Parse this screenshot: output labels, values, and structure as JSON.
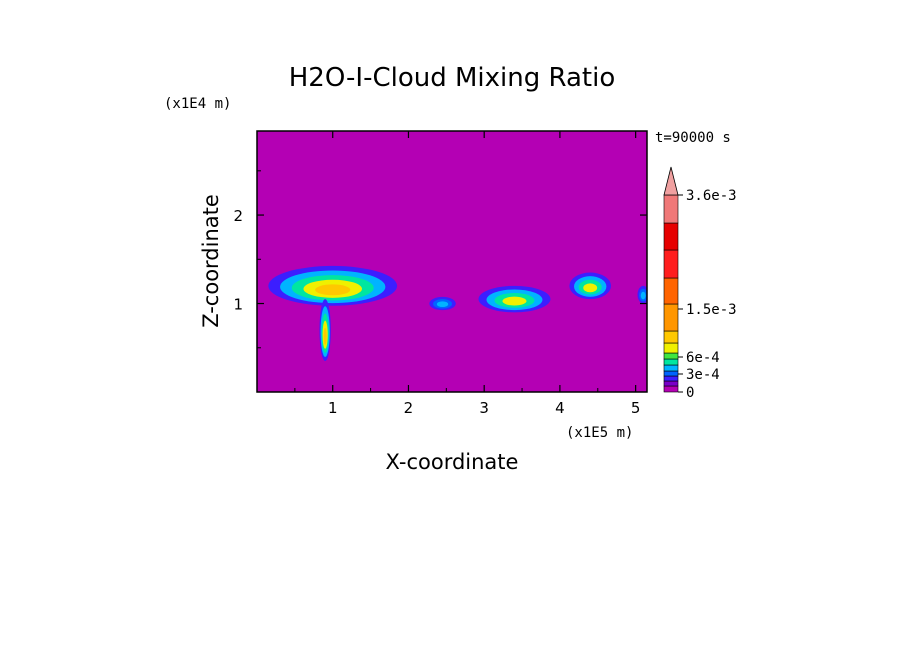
{
  "chart_data": {
    "type": "heatmap",
    "title": "H2O-I-Cloud Mixing Ratio",
    "xlabel": "X-coordinate",
    "ylabel": "Z-coordinate",
    "x_scale_label": "(x1E5 m)",
    "y_scale_label": "(x1E4 m)",
    "time_label": "t=90000 s",
    "xlim": [
      0,
      5.15
    ],
    "ylim": [
      0,
      2.95
    ],
    "x_ticks": [
      1,
      2,
      3,
      4,
      5
    ],
    "x_tick_labels": [
      "1",
      "2",
      "3",
      "4",
      "5"
    ],
    "y_ticks": [
      1,
      2
    ],
    "y_tick_labels": [
      "1",
      "2"
    ],
    "background_color": "#b400b4",
    "colorbar": {
      "levels": [
        "0",
        "3e-4",
        "6e-4",
        "1.5e-3",
        "3.6e-3"
      ],
      "colors": [
        "#b400b4",
        "#7a00c8",
        "#3c1eff",
        "#0064ff",
        "#00b4ff",
        "#00e6a0",
        "#40e640",
        "#f0f000",
        "#ffc800",
        "#ff9600",
        "#ff6400",
        "#ff1e1e",
        "#e60000",
        "#f07878",
        "#f0a0a0"
      ],
      "extend": "max"
    },
    "cloud_regions": [
      {
        "x_center": 1.0,
        "z_center": 1.2,
        "width": 1.7,
        "height": 0.45,
        "peak": "high"
      },
      {
        "x_center": 0.9,
        "z_center": 0.7,
        "width": 0.15,
        "height": 0.7,
        "peak": "high"
      },
      {
        "x_center": 2.45,
        "z_center": 1.0,
        "width": 0.35,
        "height": 0.15,
        "peak": "low"
      },
      {
        "x_center": 3.4,
        "z_center": 1.05,
        "width": 0.95,
        "height": 0.3,
        "peak": "medium"
      },
      {
        "x_center": 4.4,
        "z_center": 1.2,
        "width": 0.55,
        "height": 0.3,
        "peak": "medium"
      },
      {
        "x_center": 5.1,
        "z_center": 1.1,
        "width": 0.15,
        "height": 0.2,
        "peak": "low"
      }
    ]
  }
}
